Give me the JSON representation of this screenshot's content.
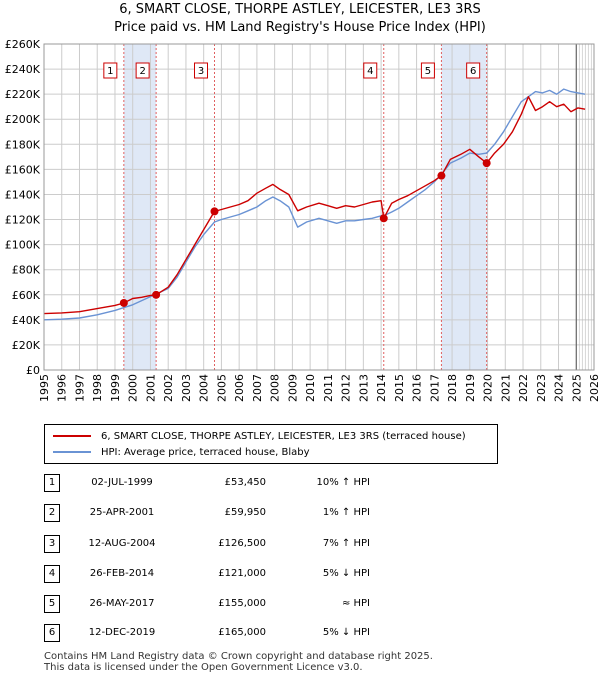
{
  "title_line1": "6, SMART CLOSE, THORPE ASTLEY, LEICESTER, LE3 3RS",
  "title_line2": "Price paid vs. HM Land Registry's House Price Index (HPI)",
  "colors": {
    "property": "#cc0000",
    "hpi": "#6a93d4",
    "shade": "#dfe8f6",
    "grid": "#cccccc",
    "marker_line": "#e06060"
  },
  "chart_data": {
    "type": "line",
    "ylim": [
      0,
      260000
    ],
    "xlim": [
      1995,
      2026
    ],
    "y_ticks": [
      0,
      20000,
      40000,
      60000,
      80000,
      100000,
      120000,
      140000,
      160000,
      180000,
      200000,
      220000,
      240000,
      260000
    ],
    "y_tick_labels": [
      "£0",
      "£20K",
      "£40K",
      "£60K",
      "£80K",
      "£100K",
      "£120K",
      "£140K",
      "£160K",
      "£180K",
      "£200K",
      "£220K",
      "£240K",
      "£260K"
    ],
    "x_ticks": [
      1995,
      1996,
      1997,
      1998,
      1999,
      2000,
      2001,
      2002,
      2003,
      2004,
      2005,
      2006,
      2007,
      2008,
      2009,
      2010,
      2011,
      2012,
      2013,
      2014,
      2015,
      2016,
      2017,
      2018,
      2019,
      2020,
      2021,
      2022,
      2023,
      2024,
      2025,
      2026
    ],
    "x_tick_labels": [
      "1995",
      "1996",
      "1997",
      "1998",
      "1999",
      "2000",
      "2001",
      "2002",
      "2003",
      "2004",
      "2005",
      "2006",
      "2007",
      "2008",
      "2009",
      "2010",
      "2011",
      "2012",
      "2013",
      "2014",
      "2015",
      "2016",
      "2017",
      "2018",
      "2019",
      "2020",
      "2021",
      "2022",
      "2023",
      "2024",
      "2025",
      "2026"
    ],
    "shaded_spans": [
      [
        1999.5,
        2001.32
      ],
      [
        2017.4,
        2019.95
      ]
    ],
    "forecast_from": 2025.0,
    "sales": [
      {
        "label": "1",
        "x": 1999.5,
        "price": 53450
      },
      {
        "label": "2",
        "x": 2001.32,
        "price": 59950
      },
      {
        "label": "3",
        "x": 2004.61,
        "price": 126500
      },
      {
        "label": "4",
        "x": 2014.15,
        "price": 121000
      },
      {
        "label": "5",
        "x": 2017.4,
        "price": 155000
      },
      {
        "label": "6",
        "x": 2019.95,
        "price": 165000
      }
    ],
    "series": [
      {
        "name": "6, SMART CLOSE, THORPE ASTLEY, LEICESTER, LE3 3RS (terraced house)",
        "color": "#cc0000",
        "x": [
          1995,
          1996,
          1997,
          1998,
          1999,
          1999.5,
          2000,
          2000.5,
          2001,
          2001.32,
          2002,
          2002.5,
          2003,
          2003.5,
          2004,
          2004.61,
          2005,
          2005.5,
          2006,
          2006.5,
          2007,
          2007.5,
          2007.9,
          2008.3,
          2008.8,
          2009.3,
          2009.8,
          2010.5,
          2011,
          2011.5,
          2012,
          2012.5,
          2013,
          2013.5,
          2014,
          2014.15,
          2014.6,
          2015,
          2015.5,
          2016,
          2016.5,
          2017,
          2017.4,
          2017.9,
          2018.5,
          2019,
          2019.5,
          2019.95,
          2020.4,
          2020.9,
          2021.4,
          2021.9,
          2022.3,
          2022.7,
          2023.1,
          2023.5,
          2023.9,
          2024.3,
          2024.7,
          2025.1,
          2025.5
        ],
        "values": [
          45000,
          45500,
          46500,
          49000,
          51500,
          53450,
          57000,
          58000,
          59500,
          59950,
          66000,
          76000,
          88000,
          100000,
          112000,
          126500,
          128000,
          130000,
          132000,
          135000,
          141000,
          145000,
          148000,
          144000,
          140000,
          127000,
          130000,
          133000,
          131000,
          129000,
          131000,
          130000,
          132000,
          134000,
          135000,
          121000,
          133000,
          136000,
          139000,
          143000,
          147000,
          151000,
          155000,
          168000,
          172000,
          176000,
          170000,
          165000,
          173000,
          180000,
          190000,
          204000,
          218000,
          207000,
          210000,
          214000,
          210000,
          212000,
          206000,
          209000,
          208000
        ]
      },
      {
        "name": "HPI: Average price, terraced house, Blaby",
        "color": "#6a93d4",
        "x": [
          1995,
          1996,
          1997,
          1998,
          1999,
          2000,
          2001,
          2002,
          2002.5,
          2003,
          2003.5,
          2004,
          2004.61,
          2005,
          2005.5,
          2006,
          2006.5,
          2007,
          2007.5,
          2007.9,
          2008.3,
          2008.8,
          2009.3,
          2009.8,
          2010.5,
          2011,
          2011.5,
          2012,
          2012.5,
          2013,
          2013.5,
          2014,
          2014.15,
          2014.6,
          2015,
          2015.5,
          2016,
          2016.5,
          2017,
          2017.4,
          2017.9,
          2018.5,
          2019,
          2019.5,
          2019.95,
          2020.4,
          2020.9,
          2021.4,
          2021.9,
          2022.3,
          2022.7,
          2023.1,
          2023.5,
          2023.9,
          2024.3,
          2024.7,
          2025.1,
          2025.5
        ],
        "values": [
          40000,
          40500,
          41500,
          44000,
          47500,
          52000,
          58500,
          65000,
          74000,
          86000,
          98000,
          108000,
          118000,
          120000,
          122000,
          124000,
          127000,
          130000,
          135000,
          138000,
          135000,
          130000,
          114000,
          118000,
          121000,
          119000,
          117000,
          119000,
          119000,
          120000,
          121000,
          123000,
          123000,
          126000,
          129000,
          134000,
          139000,
          144000,
          150000,
          156000,
          165000,
          169000,
          173000,
          172000,
          173000,
          180000,
          190000,
          202000,
          214000,
          218000,
          222000,
          221000,
          223000,
          220000,
          224000,
          222000,
          221000,
          220000
        ]
      }
    ]
  },
  "legend": {
    "property_label": "6, SMART CLOSE, THORPE ASTLEY, LEICESTER, LE3 3RS (terraced house)",
    "hpi_label": "HPI: Average price, terraced house, Blaby"
  },
  "transactions": [
    {
      "num": "1",
      "date": "02-JUL-1999",
      "price": "£53,450",
      "rel": "10% ↑ HPI"
    },
    {
      "num": "2",
      "date": "25-APR-2001",
      "price": "£59,950",
      "rel": "1% ↑ HPI"
    },
    {
      "num": "3",
      "date": "12-AUG-2004",
      "price": "£126,500",
      "rel": "7% ↑ HPI"
    },
    {
      "num": "4",
      "date": "26-FEB-2014",
      "price": "£121,000",
      "rel": "5% ↓ HPI"
    },
    {
      "num": "5",
      "date": "26-MAY-2017",
      "price": "£155,000",
      "rel": "≈ HPI"
    },
    {
      "num": "6",
      "date": "12-DEC-2019",
      "price": "£165,000",
      "rel": "5% ↓ HPI"
    }
  ],
  "footer_line1": "Contains HM Land Registry data © Crown copyright and database right 2025.",
  "footer_line2": "This data is licensed under the Open Government Licence v3.0."
}
